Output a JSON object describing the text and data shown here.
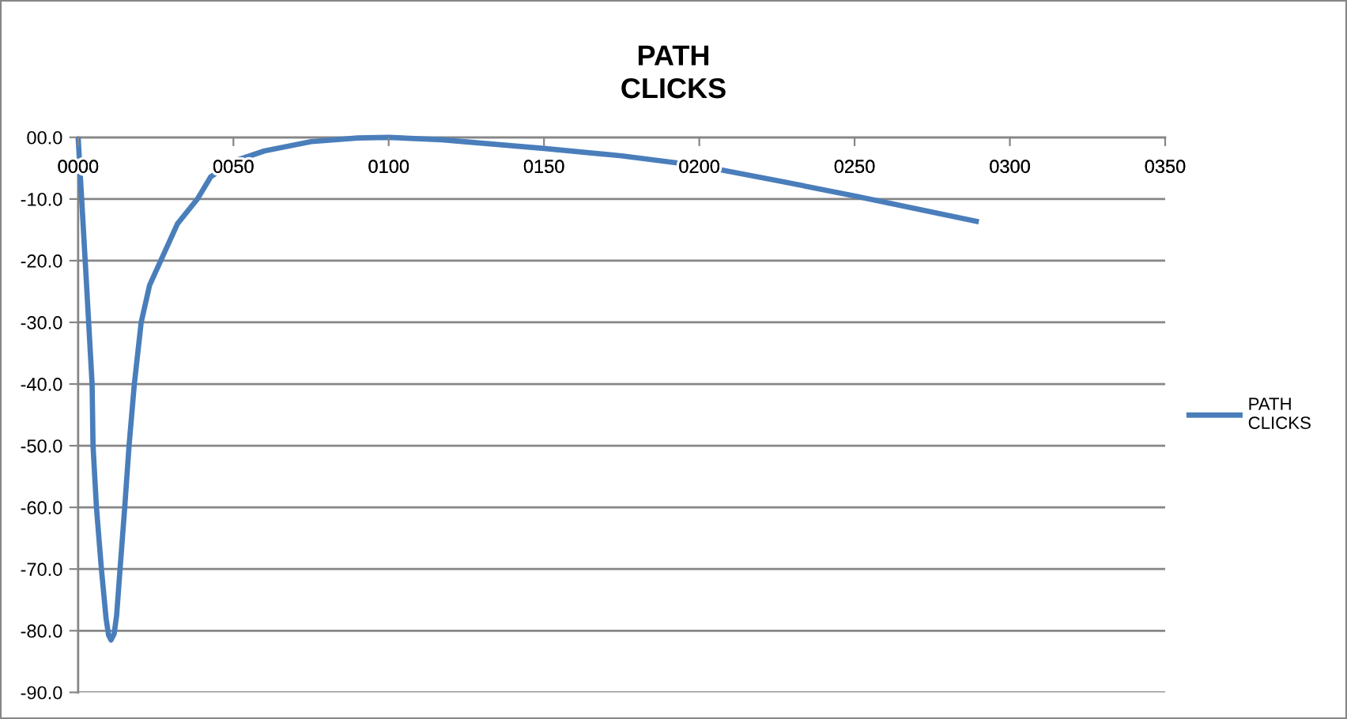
{
  "chart_data": {
    "type": "line",
    "title": "PATH\nCLICKS",
    "x": [
      0,
      2.5,
      4.5,
      4.8,
      5.9,
      7.5,
      9,
      9.8,
      10.6,
      11.6,
      12.4,
      13.5,
      15,
      16.4,
      18.1,
      20.3,
      23,
      26.6,
      32,
      38.4,
      42.7,
      50,
      60,
      75,
      90,
      100,
      117,
      150,
      175,
      200,
      225,
      250,
      290
    ],
    "series": [
      {
        "name": "PATH\nCLICKS",
        "color": "#4a7ebb",
        "values": [
          0,
          -22,
          -40,
          -50,
          -60,
          -70,
          -78,
          -80.7,
          -81.5,
          -80.5,
          -77.5,
          -70,
          -60,
          -50,
          -40,
          -30,
          -24,
          -20,
          -14,
          -10,
          -6.4,
          -3.9,
          -2.2,
          -0.7,
          -0.1,
          0,
          -0.4,
          -1.8,
          -3,
          -4.6,
          -7,
          -9.5,
          -13.7
        ]
      }
    ],
    "xlim": [
      0,
      350
    ],
    "xticks": [
      {
        "value": 0,
        "label": "0000"
      },
      {
        "value": 50,
        "label": "0050"
      },
      {
        "value": 100,
        "label": "0100"
      },
      {
        "value": 150,
        "label": "0150"
      },
      {
        "value": 200,
        "label": "0200"
      },
      {
        "value": 250,
        "label": "0250"
      },
      {
        "value": 300,
        "label": "0300"
      },
      {
        "value": 350,
        "label": "0350"
      }
    ],
    "ylim": [
      -90,
      0
    ],
    "yticks": [
      {
        "value": 0,
        "label": "00.0"
      },
      {
        "value": -10,
        "label": "-10.0"
      },
      {
        "value": -20,
        "label": "-20.0"
      },
      {
        "value": -30,
        "label": "-30.0"
      },
      {
        "value": -40,
        "label": "-40.0"
      },
      {
        "value": -50,
        "label": "-50.0"
      },
      {
        "value": -60,
        "label": "-60.0"
      },
      {
        "value": -70,
        "label": "-70.0"
      },
      {
        "value": -80,
        "label": "-80.0"
      },
      {
        "value": -90,
        "label": "-90.0"
      }
    ],
    "grid": "y",
    "legend": "right",
    "line_style": "solid"
  }
}
